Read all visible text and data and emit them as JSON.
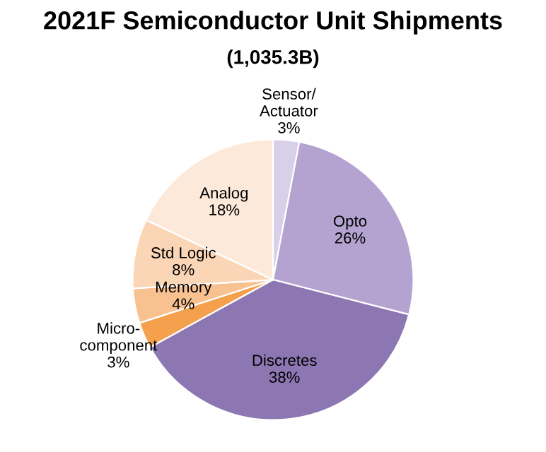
{
  "chart_data": {
    "type": "pie",
    "title": "2021F Semiconductor Unit Shipments",
    "subtitle": "(1,035.3B)",
    "categories": [
      "Sensor/\nActuator",
      "Opto",
      "Discretes",
      "Micro-\ncomponent",
      "Memory",
      "Std Logic",
      "Analog"
    ],
    "values": [
      3,
      26,
      38,
      3,
      4,
      8,
      18
    ],
    "value_labels": [
      "3%",
      "26%",
      "38%",
      "3%",
      "4%",
      "8%",
      "18%"
    ],
    "colors": [
      "#d8cfe8",
      "#b4a3d0",
      "#8d77b3",
      "#f4a04c",
      "#f8c290",
      "#fbd6b6",
      "#fde9d9"
    ]
  }
}
